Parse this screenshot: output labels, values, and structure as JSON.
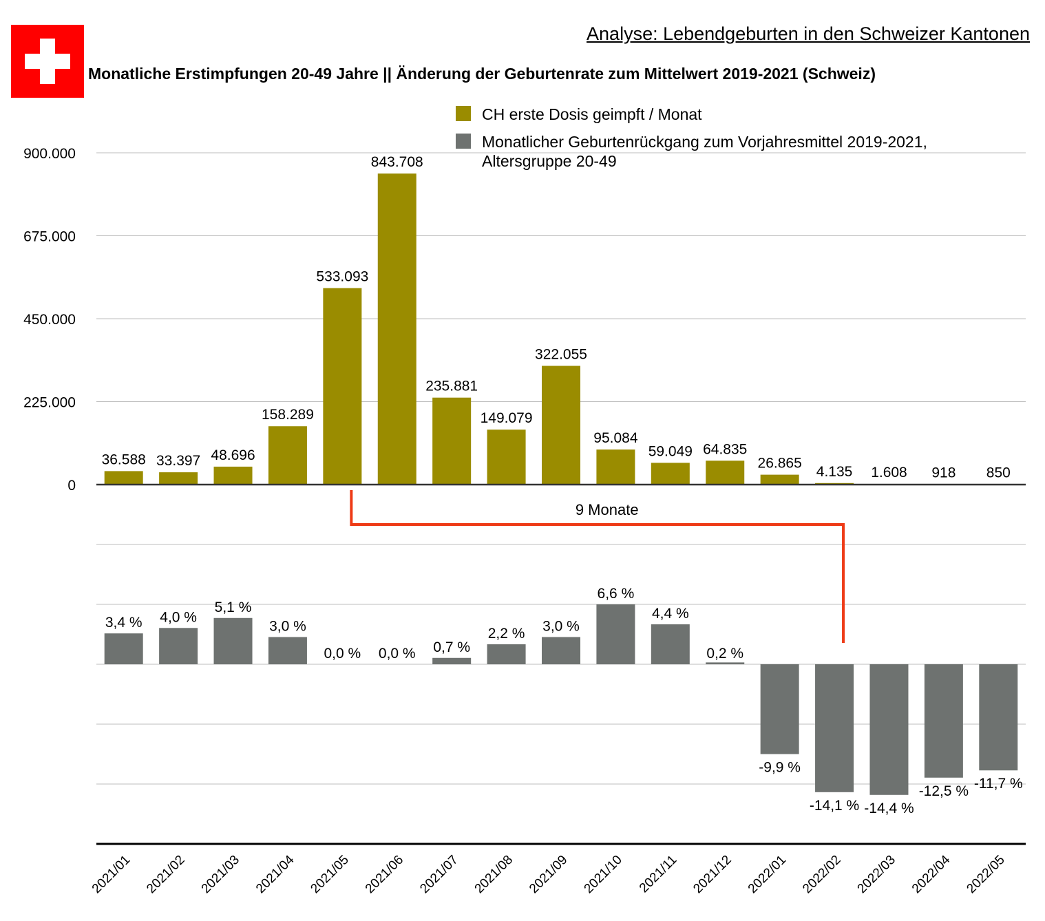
{
  "header": {
    "analysis_title": "Analyse: Lebendgeburten in den Schweizer Kantonen",
    "chart_title": "Monatliche Erstimpfungen 20-49 Jahre || Änderung der Geburtenrate zum Mittelwert 2019-2021 (Schweiz)"
  },
  "flag": {
    "name": "swiss-flag",
    "colors": {
      "background": "#ff0000",
      "cross": "#ffffff"
    }
  },
  "legend": {
    "vaccinations": {
      "label": "CH erste Dosis geimpft / Monat",
      "color": "#9a8c00"
    },
    "births": {
      "label": "Monatlicher Geburtenrückgang zum Vorjahresmittel 2019-2021, Altersgruppe 20-49",
      "color": "#6e7270"
    }
  },
  "annotation": {
    "label": "9 Monate",
    "from": "2021/05",
    "to": "2022/02",
    "color": "#ee3a16"
  },
  "chart_data": {
    "type": "bar",
    "categories": [
      "2021/01",
      "2021/02",
      "2021/03",
      "2021/04",
      "2021/05",
      "2021/06",
      "2021/07",
      "2021/08",
      "2021/09",
      "2021/10",
      "2021/11",
      "2021/12",
      "2022/01",
      "2022/02",
      "2022/03",
      "2022/04",
      "2022/05"
    ],
    "series": [
      {
        "name": "CH erste Dosis geimpft / Monat",
        "color": "#9a8c00",
        "values": [
          36588,
          33397,
          48696,
          158289,
          533093,
          843708,
          235881,
          149079,
          322055,
          95084,
          59049,
          64835,
          26865,
          4135,
          1608,
          918,
          850
        ],
        "labels": [
          "36.588",
          "33.397",
          "48.696",
          "158.289",
          "533.093",
          "843.708",
          "235.881",
          "149.079",
          "322.055",
          "95.084",
          "59.049",
          "64.835",
          "26.865",
          "4.135",
          "1.608",
          "918",
          "850"
        ],
        "ylim": [
          0,
          900000
        ],
        "yticks": [
          0,
          225000,
          450000,
          675000,
          900000
        ],
        "ytick_labels": [
          "0",
          "225.000",
          "450.000",
          "675.000",
          "900.000"
        ]
      },
      {
        "name": "Monatlicher Geburtenrückgang zum Vorjahresmittel 2019-2021, Altersgruppe 20-49",
        "color": "#6e7270",
        "values": [
          3.4,
          4.0,
          5.1,
          3.0,
          0.0,
          0.0,
          0.7,
          2.2,
          3.0,
          6.6,
          4.4,
          0.2,
          -9.9,
          -14.1,
          -14.4,
          -12.5,
          -11.7
        ],
        "labels": [
          "3,4 %",
          "4,0 %",
          "5,1 %",
          "3,0 %",
          "0,0 %",
          "0,0 %",
          "0,7 %",
          "2,2 %",
          "3,0 %",
          "6,6 %",
          "4,4 %",
          "0,2 %",
          "-9,9 %",
          "-14,1 %",
          "-14,4 %",
          "-12,5 %",
          "-11,7 %"
        ],
        "ylim": [
          -19.5,
          13.2
        ],
        "gridlines": [
          -13.2,
          -6.6,
          0,
          6.6,
          13.2
        ]
      }
    ],
    "grid": true,
    "legend_position": "top-right"
  }
}
